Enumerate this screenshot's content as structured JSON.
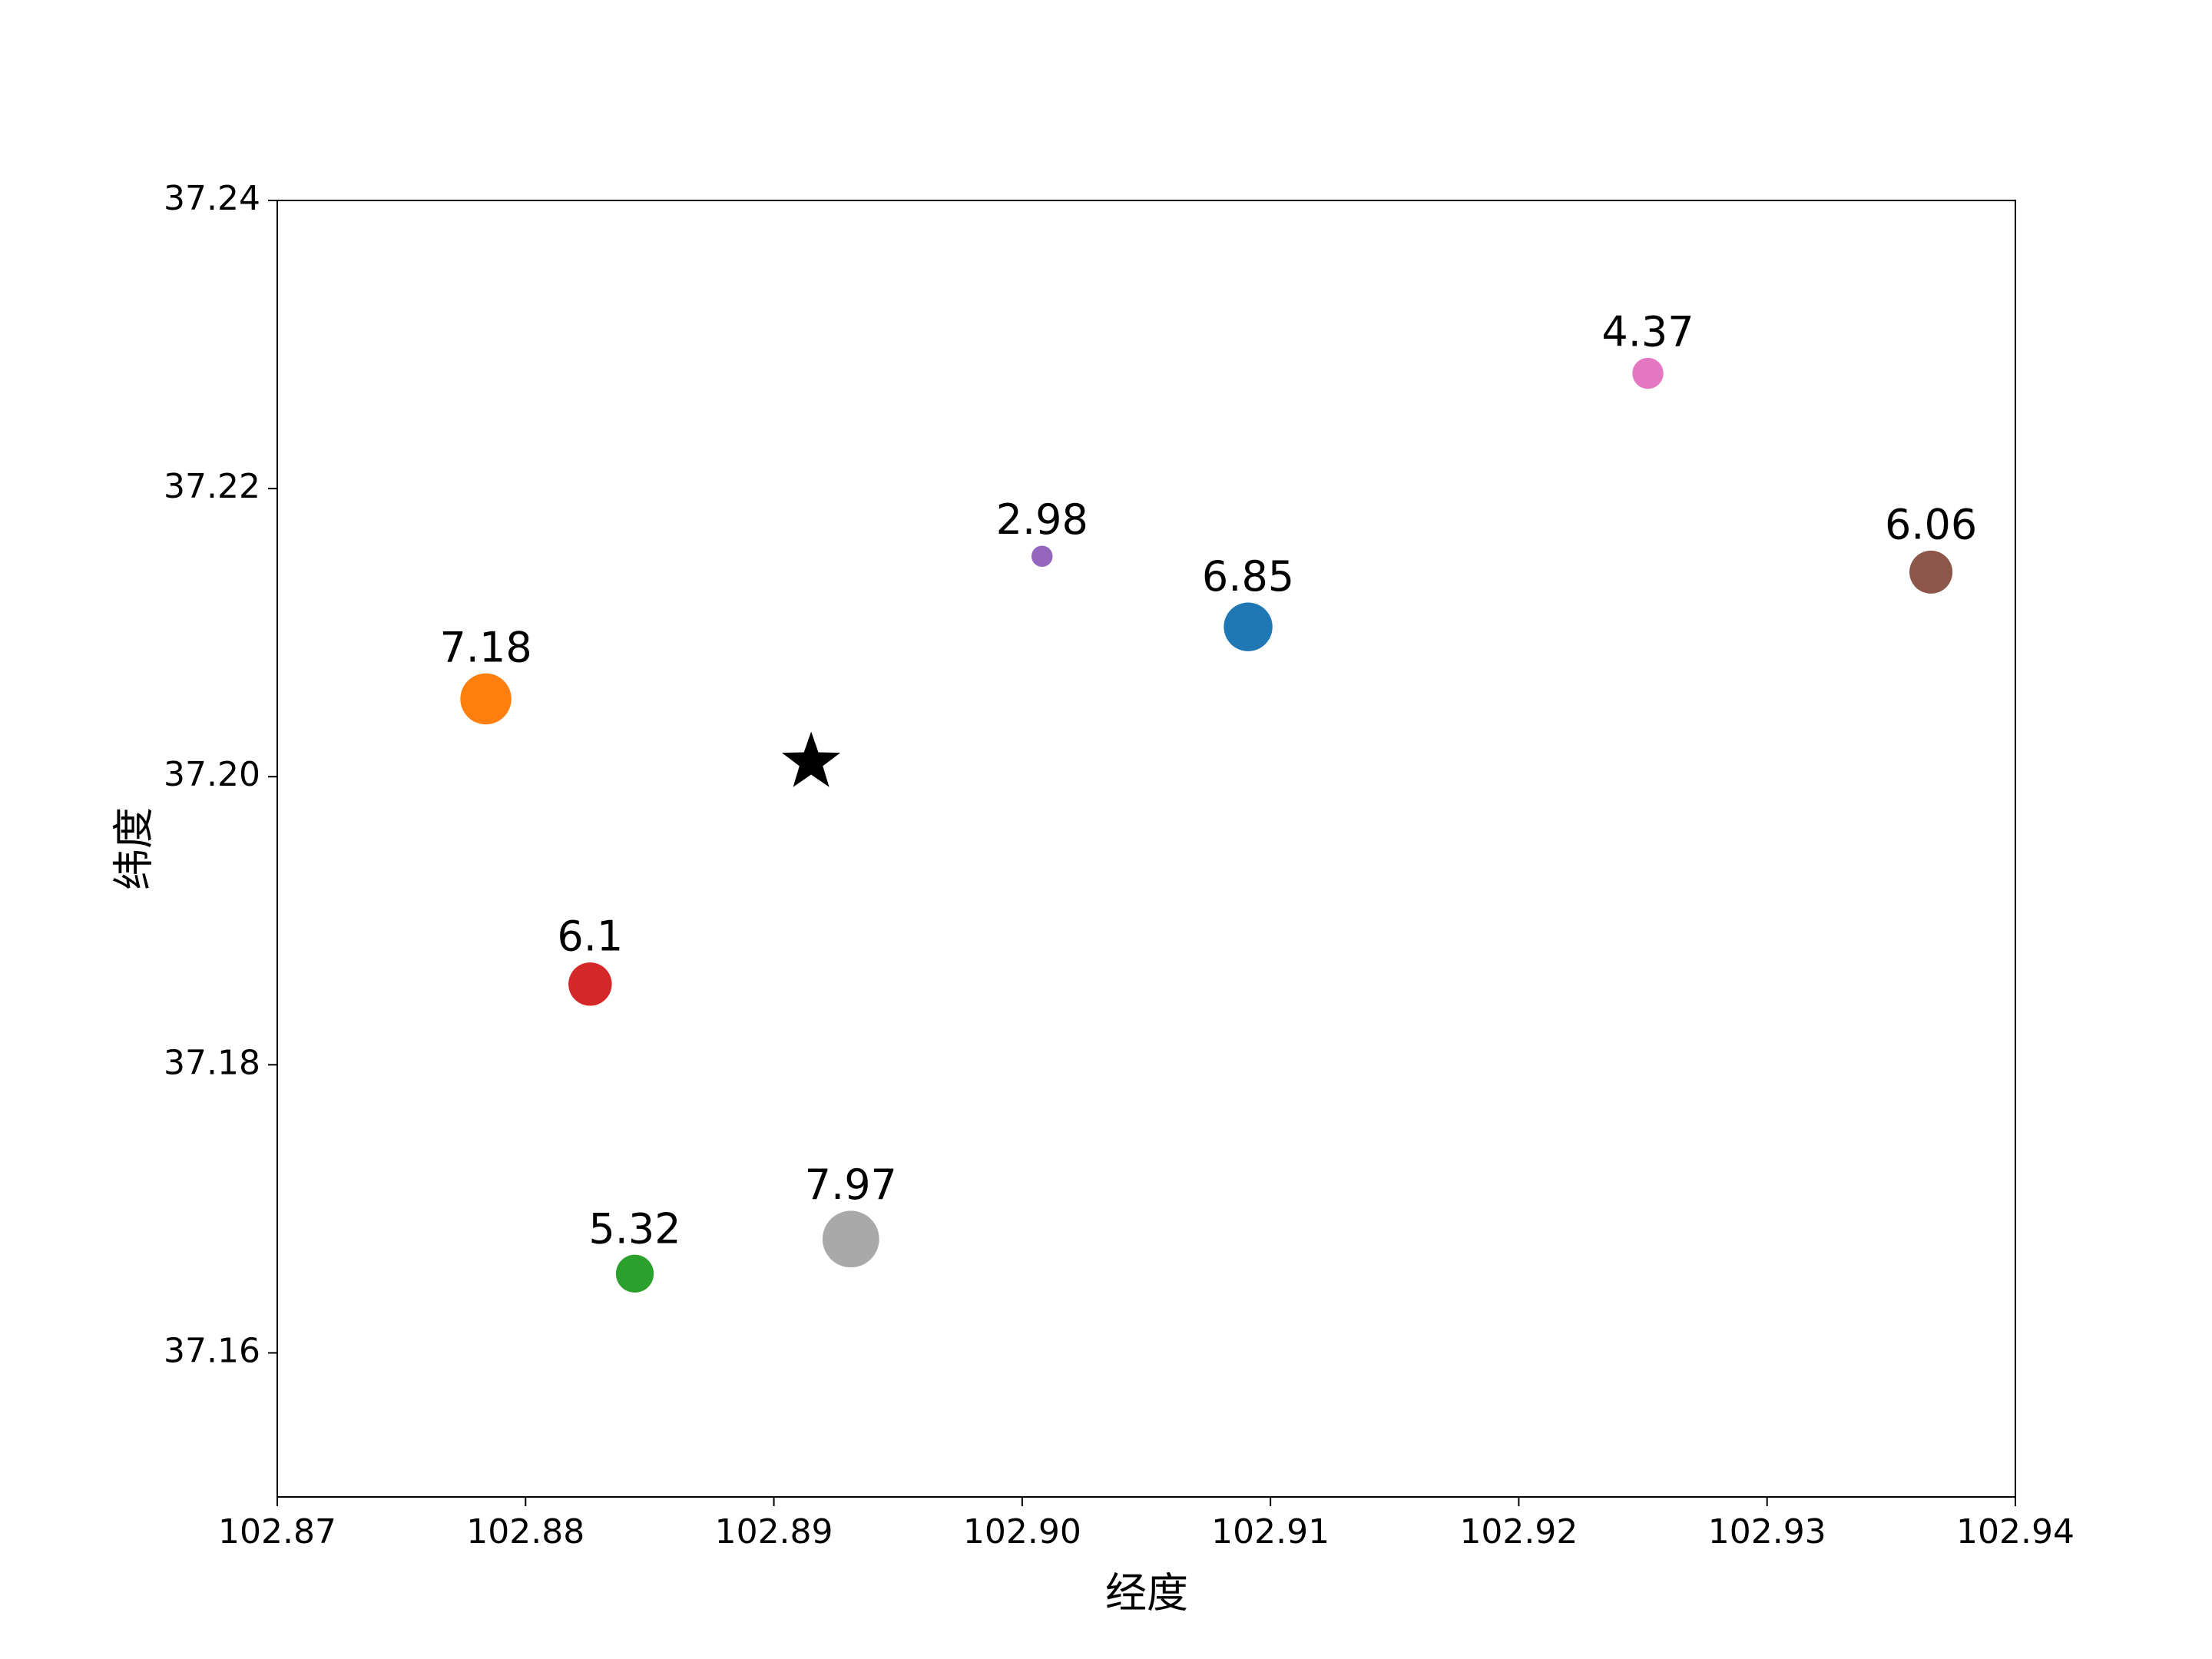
{
  "chart_data": {
    "type": "scatter",
    "title": "",
    "xlabel": "经度",
    "ylabel": "纬度",
    "xlim": [
      102.87,
      102.94
    ],
    "ylim": [
      37.15,
      37.24
    ],
    "xticks": [
      "102.87",
      "102.88",
      "102.89",
      "102.90",
      "102.91",
      "102.92",
      "102.93",
      "102.94"
    ],
    "yticks": [
      "37.16",
      "37.18",
      "37.20",
      "37.22",
      "37.24"
    ],
    "grid": false,
    "points": [
      {
        "x": 102.9091,
        "y": 37.2104,
        "label": "6.85",
        "value": 6.85,
        "color": "#1f77b4"
      },
      {
        "x": 102.8784,
        "y": 37.2054,
        "label": "7.18",
        "value": 7.18,
        "color": "#ff7f0e"
      },
      {
        "x": 102.8844,
        "y": 37.1655,
        "label": "5.32",
        "value": 5.32,
        "color": "#2ca02c"
      },
      {
        "x": 102.8826,
        "y": 37.1856,
        "label": "6.1",
        "value": 6.1,
        "color": "#d62728"
      },
      {
        "x": 102.9008,
        "y": 37.2153,
        "label": "2.98",
        "value": 2.98,
        "color": "#9467bd"
      },
      {
        "x": 102.9366,
        "y": 37.2142,
        "label": "6.06",
        "value": 6.06,
        "color": "#8c564b"
      },
      {
        "x": 102.9252,
        "y": 37.228,
        "label": "4.37",
        "value": 4.37,
        "color": "#e377c2"
      },
      {
        "x": 102.8931,
        "y": 37.1679,
        "label": "7.97",
        "value": 7.97,
        "color": "#a9a9a9"
      }
    ],
    "reference_point": {
      "x": 102.8915,
      "y": 37.201,
      "marker": "star",
      "color": "#000000"
    }
  }
}
